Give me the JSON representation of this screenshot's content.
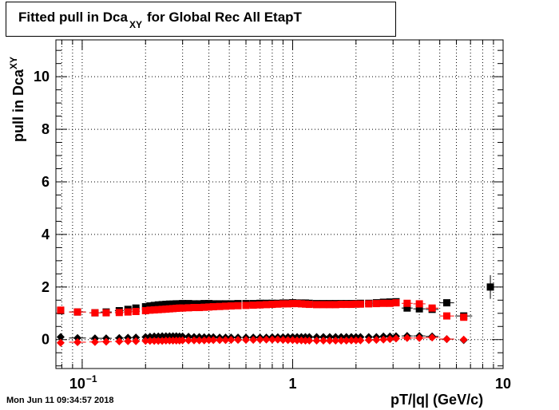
{
  "chart_data": {
    "type": "scatter",
    "title": "Fitted pull in Dca",
    "title_subscript": "XY",
    "title_suffix": "for Global Rec All EtapT",
    "xlabel": "pT/|q| (GeV/c)",
    "ylabel": "pull in Dca",
    "ylabel_subscript": "XY",
    "x_scale": "log",
    "xlim": [
      0.075,
      10
    ],
    "ylim": [
      -1.1,
      11.4
    ],
    "grid": true,
    "x_ticks": [
      {
        "value": 0.1,
        "label": "10",
        "exp": "−1"
      },
      {
        "value": 1,
        "label": "1"
      },
      {
        "value": 10,
        "label": "10"
      }
    ],
    "y_ticks": [
      "0",
      "2",
      "4",
      "6",
      "8",
      "10"
    ],
    "series": [
      {
        "color": "#000000",
        "marker": "square",
        "x": [
          0.079,
          0.095,
          0.115,
          0.13,
          0.15,
          0.165,
          0.18,
          0.2,
          0.21,
          0.22,
          0.23,
          0.24,
          0.25,
          0.26,
          0.27,
          0.28,
          0.29,
          0.3,
          0.32,
          0.34,
          0.36,
          0.38,
          0.4,
          0.42,
          0.45,
          0.48,
          0.51,
          0.55,
          0.6,
          0.65,
          0.7,
          0.75,
          0.8,
          0.85,
          0.9,
          0.95,
          1.0,
          1.05,
          1.1,
          1.15,
          1.2,
          1.3,
          1.4,
          1.5,
          1.6,
          1.7,
          1.8,
          1.9,
          2.0,
          2.1,
          2.3,
          2.5,
          2.7,
          2.9,
          3.1,
          3.5,
          4.0,
          4.6,
          5.4,
          6.5,
          8.7
        ],
        "y": [
          1.1,
          1.05,
          1.02,
          1.05,
          1.1,
          1.15,
          1.2,
          1.25,
          1.28,
          1.3,
          1.32,
          1.33,
          1.34,
          1.35,
          1.35,
          1.36,
          1.36,
          1.37,
          1.37,
          1.36,
          1.36,
          1.37,
          1.37,
          1.36,
          1.36,
          1.36,
          1.36,
          1.37,
          1.37,
          1.37,
          1.38,
          1.38,
          1.38,
          1.38,
          1.39,
          1.39,
          1.4,
          1.39,
          1.39,
          1.39,
          1.38,
          1.37,
          1.37,
          1.37,
          1.37,
          1.37,
          1.37,
          1.37,
          1.37,
          1.38,
          1.38,
          1.4,
          1.42,
          1.43,
          1.44,
          1.2,
          1.17,
          1.15,
          1.4,
          0.9,
          2.0
        ],
        "y_err": [
          0,
          0,
          0,
          0,
          0,
          0,
          0,
          0,
          0,
          0,
          0,
          0,
          0,
          0,
          0,
          0,
          0,
          0,
          0,
          0,
          0,
          0,
          0,
          0,
          0,
          0,
          0,
          0,
          0,
          0,
          0,
          0,
          0,
          0,
          0,
          0,
          0,
          0,
          0,
          0,
          0,
          0,
          0,
          0,
          0,
          0,
          0,
          0,
          0,
          0,
          0,
          0,
          0,
          0,
          0,
          0,
          0,
          0,
          0,
          0,
          0.45
        ]
      },
      {
        "color": "#ff0000",
        "marker": "square",
        "x": [
          0.079,
          0.095,
          0.115,
          0.13,
          0.15,
          0.165,
          0.18,
          0.2,
          0.21,
          0.22,
          0.23,
          0.24,
          0.25,
          0.26,
          0.27,
          0.28,
          0.29,
          0.3,
          0.32,
          0.34,
          0.36,
          0.38,
          0.4,
          0.42,
          0.45,
          0.48,
          0.51,
          0.55,
          0.6,
          0.65,
          0.7,
          0.75,
          0.8,
          0.85,
          0.9,
          0.95,
          1.0,
          1.05,
          1.1,
          1.15,
          1.2,
          1.3,
          1.4,
          1.5,
          1.6,
          1.7,
          1.8,
          1.9,
          2.0,
          2.1,
          2.3,
          2.5,
          2.7,
          2.9,
          3.1,
          3.5,
          4.0,
          4.6,
          5.4,
          6.5
        ],
        "y": [
          1.12,
          1.05,
          1.02,
          1.02,
          1.03,
          1.05,
          1.07,
          1.1,
          1.12,
          1.13,
          1.14,
          1.15,
          1.16,
          1.17,
          1.18,
          1.19,
          1.2,
          1.2,
          1.21,
          1.22,
          1.22,
          1.23,
          1.24,
          1.25,
          1.26,
          1.27,
          1.28,
          1.29,
          1.3,
          1.31,
          1.32,
          1.33,
          1.34,
          1.35,
          1.36,
          1.36,
          1.37,
          1.37,
          1.36,
          1.35,
          1.34,
          1.33,
          1.33,
          1.33,
          1.33,
          1.34,
          1.34,
          1.34,
          1.35,
          1.35,
          1.36,
          1.37,
          1.38,
          1.38,
          1.4,
          1.38,
          1.36,
          1.2,
          0.9,
          0.85
        ]
      },
      {
        "color": "#000000",
        "marker": "diamond",
        "x": [
          0.079,
          0.095,
          0.115,
          0.13,
          0.15,
          0.165,
          0.18,
          0.2,
          0.21,
          0.22,
          0.23,
          0.24,
          0.25,
          0.26,
          0.27,
          0.28,
          0.29,
          0.3,
          0.32,
          0.34,
          0.36,
          0.38,
          0.4,
          0.42,
          0.45,
          0.48,
          0.51,
          0.55,
          0.6,
          0.65,
          0.7,
          0.75,
          0.8,
          0.85,
          0.9,
          0.95,
          1.0,
          1.05,
          1.1,
          1.15,
          1.2,
          1.3,
          1.4,
          1.5,
          1.6,
          1.7,
          1.8,
          1.9,
          2.0,
          2.1,
          2.3,
          2.5,
          2.7,
          2.9,
          3.1,
          3.5,
          4.0,
          4.6,
          5.4,
          6.5
        ],
        "y": [
          0.1,
          0.06,
          0.05,
          0.05,
          0.06,
          0.07,
          0.08,
          0.1,
          0.11,
          0.12,
          0.12,
          0.13,
          0.13,
          0.13,
          0.13,
          0.13,
          0.12,
          0.12,
          0.11,
          0.1,
          0.1,
          0.09,
          0.09,
          0.09,
          0.08,
          0.08,
          0.08,
          0.08,
          0.08,
          0.08,
          0.08,
          0.08,
          0.09,
          0.09,
          0.09,
          0.1,
          0.1,
          0.1,
          0.1,
          0.1,
          0.1,
          0.1,
          0.1,
          0.1,
          0.1,
          0.1,
          0.1,
          0.1,
          0.1,
          0.1,
          0.1,
          0.1,
          0.12,
          0.12,
          0.13,
          0.14,
          0.14,
          0.12,
          0.02,
          -0.02
        ]
      },
      {
        "color": "#ff0000",
        "marker": "diamond",
        "x": [
          0.079,
          0.095,
          0.115,
          0.13,
          0.15,
          0.165,
          0.18,
          0.2,
          0.21,
          0.22,
          0.23,
          0.24,
          0.25,
          0.26,
          0.27,
          0.28,
          0.29,
          0.3,
          0.32,
          0.34,
          0.36,
          0.38,
          0.4,
          0.42,
          0.45,
          0.48,
          0.51,
          0.55,
          0.6,
          0.65,
          0.7,
          0.75,
          0.8,
          0.85,
          0.9,
          0.95,
          1.0,
          1.05,
          1.1,
          1.15,
          1.2,
          1.3,
          1.4,
          1.5,
          1.6,
          1.7,
          1.8,
          1.9,
          2.0,
          2.1,
          2.3,
          2.5,
          2.7,
          2.9,
          3.1,
          3.5,
          4.0,
          4.6,
          5.4,
          6.5
        ],
        "y": [
          -0.12,
          -0.1,
          -0.09,
          -0.08,
          -0.07,
          -0.06,
          -0.06,
          -0.05,
          -0.05,
          -0.05,
          -0.05,
          -0.05,
          -0.04,
          -0.04,
          -0.04,
          -0.04,
          -0.04,
          -0.03,
          -0.03,
          -0.03,
          -0.03,
          -0.03,
          -0.02,
          -0.02,
          -0.02,
          -0.02,
          -0.01,
          -0.01,
          -0.01,
          -0.01,
          0,
          0,
          0,
          0,
          -0.01,
          -0.02,
          -0.02,
          -0.03,
          -0.03,
          -0.04,
          -0.04,
          -0.04,
          -0.04,
          -0.04,
          -0.04,
          -0.04,
          -0.04,
          -0.03,
          -0.03,
          -0.03,
          -0.02,
          -0.01,
          0,
          0.02,
          0.04,
          0.06,
          0.06,
          0.08,
          0.02,
          0
        ]
      }
    ]
  },
  "footer": {
    "timestamp": "Mon Jun 11 09:34:57 2018"
  }
}
